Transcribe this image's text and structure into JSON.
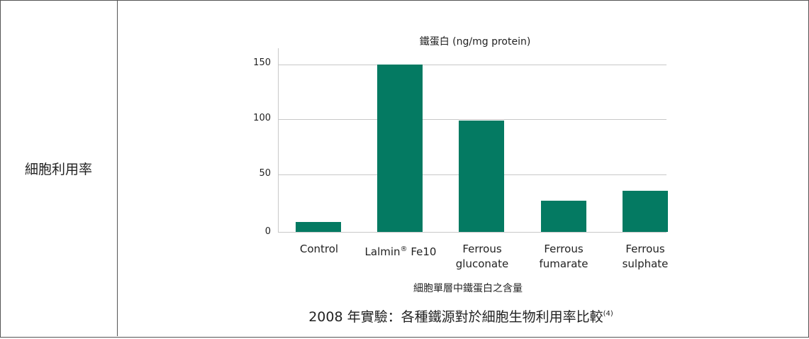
{
  "row_label": "細胞利用率",
  "chart_data": {
    "type": "bar",
    "title": "鐵蛋白 (ng/mg protein)",
    "xlabel": "細胞單層中鐵蛋白之含量",
    "ylabel": "鐵蛋白 (ng/mg protein)",
    "categories": [
      "Control",
      "Lalmin® Fe10",
      "Ferrous gluconate",
      "Ferrous fumarate",
      "Ferrous sulphate"
    ],
    "values": [
      9,
      150,
      100,
      28,
      37
    ],
    "ylim": [
      0,
      160
    ],
    "yticks": [
      0,
      50,
      100,
      150
    ],
    "grid": true,
    "bar_color": "#047a62"
  },
  "labels": {
    "cat0": "Control",
    "cat1_main": "Lalmin",
    "cat1_sup": "®",
    "cat1_tail": " Fe10",
    "cat2_l1": "Ferrous",
    "cat2_l2": "gluconate",
    "cat3_l1": "Ferrous",
    "cat3_l2": "fumarate",
    "cat4_l1": "Ferrous",
    "cat4_l2": "sulphate",
    "ytick0": "0",
    "ytick50": "50",
    "ytick100": "100",
    "ytick150": "150"
  },
  "caption": {
    "text": "2008 年實驗：各種鐵源對於細胞生物利用率比較",
    "ref": "(4)"
  }
}
